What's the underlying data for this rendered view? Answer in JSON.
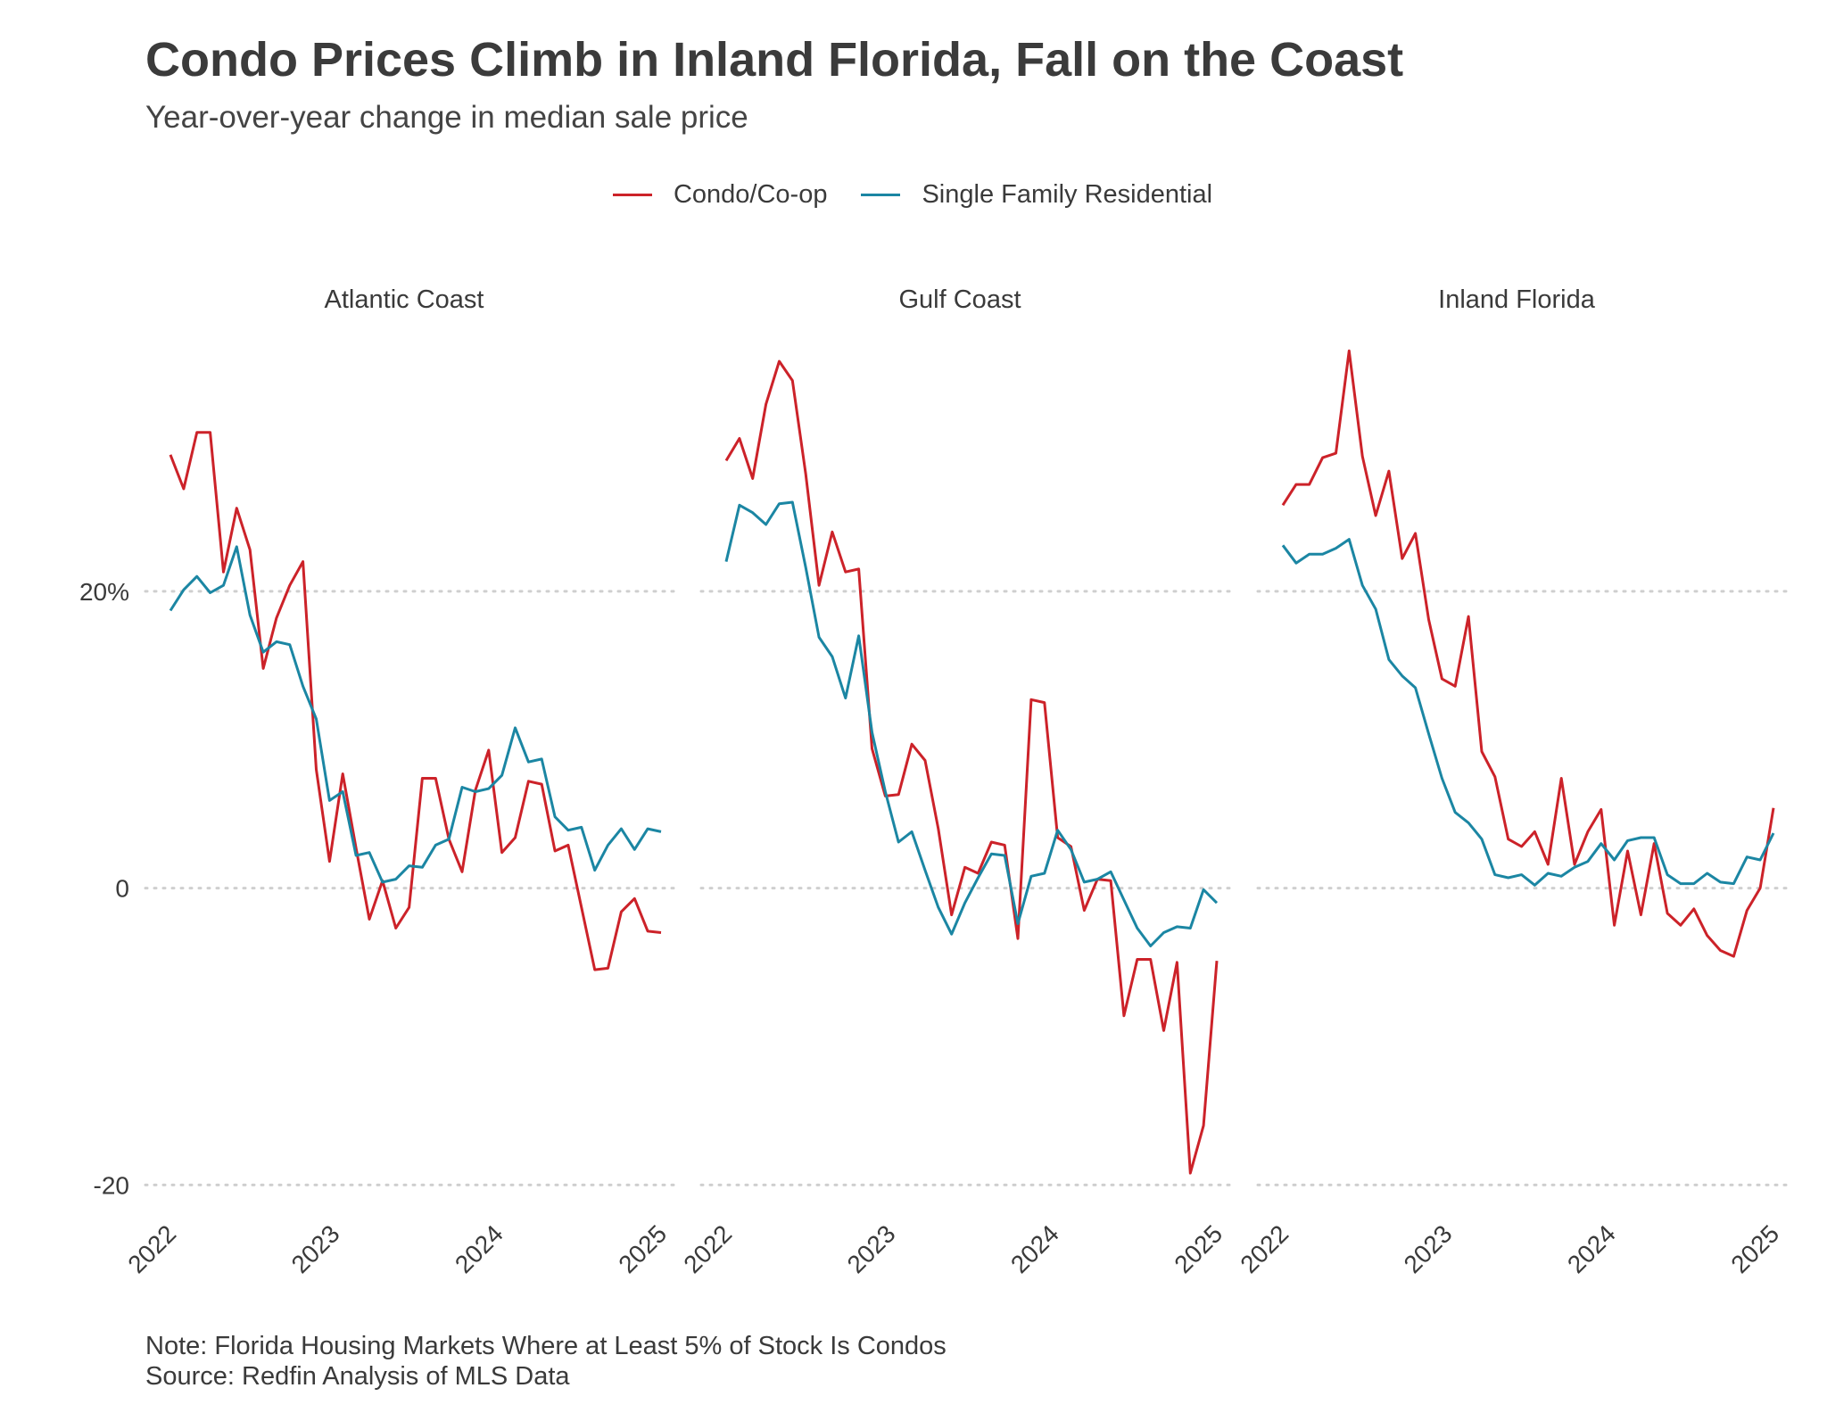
{
  "title": "Condo Prices Climb in Inland Florida, Fall on the Coast",
  "subtitle": "Year-over-year change in median sale price",
  "legend": [
    {
      "label": "Condo/Co-op",
      "color": "#cc2229"
    },
    {
      "label": "Single Family Residential",
      "color": "#1b86a3"
    }
  ],
  "note": "Note: Florida Housing Markets Where at Least 5% of Stock Is Condos",
  "source": "Source: Redfin Analysis of MLS Data",
  "chart_data": {
    "type": "line",
    "facet_by": "region",
    "y_unit": "percent",
    "ylim": [
      -21,
      37
    ],
    "y_ticks": [
      {
        "value": 20,
        "label": "20%"
      },
      {
        "value": 0,
        "label": "0"
      },
      {
        "value": -20,
        "label": "-20"
      }
    ],
    "x_ticks": [
      "2022",
      "2023",
      "2024",
      "2025"
    ],
    "grid": "horizontal dotted",
    "legend_position": "top",
    "panels": [
      {
        "name": "Atlantic Coast",
        "series": [
          {
            "name": "Condo/Co-op",
            "color": "#cc2229",
            "values": [
              29.2,
              26.9,
              30.7,
              30.7,
              21.3,
              25.6,
              22.8,
              14.8,
              18.2,
              20.4,
              22,
              8,
              1.8,
              7.7,
              2.7,
              -2.1,
              0.5,
              -2.7,
              -1.3,
              7.4,
              7.4,
              3.3,
              1.1,
              6.6,
              9.3,
              2.4,
              3.4,
              7.2,
              7,
              2.5,
              2.9,
              -1.3,
              -5.5,
              -5.4,
              -1.6,
              -0.7,
              -2.9,
              -3
            ]
          },
          {
            "name": "Single Family Residential",
            "color": "#1b86a3",
            "values": [
              18.7,
              20.1,
              21,
              19.9,
              20.4,
              23,
              18.4,
              15.9,
              16.6,
              16.4,
              13.6,
              11.4,
              5.9,
              6.5,
              2.2,
              2.4,
              0.4,
              0.6,
              1.5,
              1.4,
              2.9,
              3.3,
              6.8,
              6.5,
              6.7,
              7.6,
              10.8,
              8.5,
              8.7,
              4.8,
              3.9,
              4.1,
              1.2,
              2.9,
              4,
              2.6,
              4,
              3.8
            ]
          }
        ]
      },
      {
        "name": "Gulf Coast",
        "series": [
          {
            "name": "Condo/Co-op",
            "color": "#cc2229",
            "values": [
              28.8,
              30.3,
              27.6,
              32.6,
              35.5,
              34.2,
              27.9,
              20.4,
              24,
              21.3,
              21.5,
              9.4,
              6.2,
              6.3,
              9.7,
              8.6,
              4,
              -1.8,
              1.4,
              1,
              3.1,
              2.9,
              -3.4,
              12.7,
              12.5,
              3.4,
              2.8,
              -1.5,
              0.6,
              0.5,
              -8.6,
              -4.8,
              -4.8,
              -9.6,
              -5,
              -19.2,
              -16,
              -4.9
            ]
          },
          {
            "name": "Single Family Residential",
            "color": "#1b86a3",
            "values": [
              22,
              25.8,
              25.3,
              24.5,
              25.9,
              26,
              21.6,
              16.9,
              15.6,
              12.8,
              17,
              10.5,
              6.5,
              3.1,
              3.8,
              1.2,
              -1.3,
              -3.1,
              -1,
              0.7,
              2.3,
              2.2,
              -2.4,
              0.8,
              1,
              3.9,
              2.6,
              0.4,
              0.6,
              1.1,
              -0.8,
              -2.7,
              -3.9,
              -3,
              -2.6,
              -2.7,
              -0.1,
              -1
            ]
          }
        ]
      },
      {
        "name": "Inland Florida",
        "series": [
          {
            "name": "Condo/Co-op",
            "color": "#cc2229",
            "values": [
              25.8,
              27.2,
              27.2,
              29,
              29.3,
              36.2,
              29.1,
              25.1,
              28.1,
              22.2,
              23.9,
              18.1,
              14.1,
              13.6,
              18.3,
              9.2,
              7.5,
              3.3,
              2.8,
              3.8,
              1.6,
              7.4,
              1.6,
              3.8,
              5.3,
              -2.5,
              2.5,
              -1.8,
              3,
              -1.7,
              -2.5,
              -1.4,
              -3.2,
              -4.2,
              -4.6,
              -1.5,
              0,
              5.4
            ]
          },
          {
            "name": "Single Family Residential",
            "color": "#1b86a3",
            "values": [
              23.1,
              21.9,
              22.5,
              22.5,
              22.9,
              23.5,
              20.4,
              18.8,
              15.4,
              14.3,
              13.5,
              10.4,
              7.4,
              5.1,
              4.4,
              3.3,
              0.9,
              0.7,
              0.9,
              0.2,
              1,
              0.8,
              1.4,
              1.8,
              3,
              1.9,
              3.2,
              3.4,
              3.4,
              0.9,
              0.3,
              0.3,
              1,
              0.4,
              0.3,
              2.1,
              1.9,
              3.7
            ]
          }
        ]
      }
    ]
  }
}
